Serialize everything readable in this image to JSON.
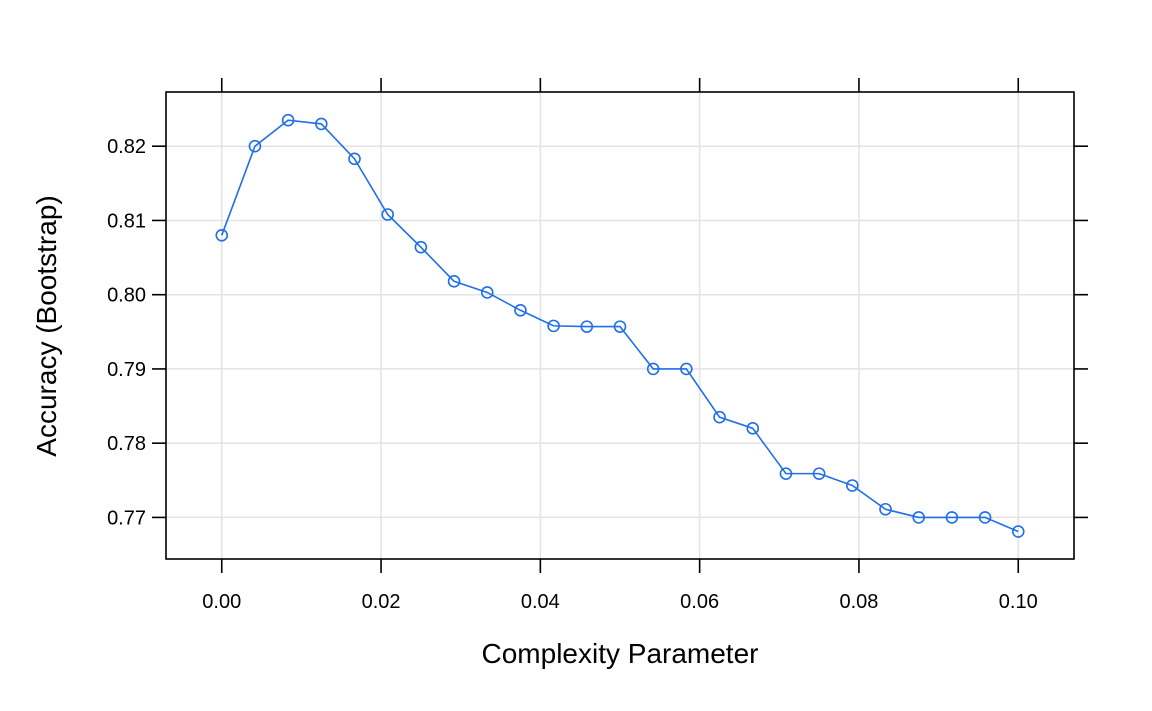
{
  "chart_data": {
    "type": "line",
    "title": "",
    "xlabel": "Complexity Parameter",
    "ylabel": "Accuracy (Bootstrap)",
    "xlim": [
      -0.007,
      0.107
    ],
    "ylim": [
      0.7644,
      0.8273
    ],
    "x_ticks": [
      "0.00",
      "0.02",
      "0.04",
      "0.06",
      "0.08",
      "0.10"
    ],
    "y_ticks": [
      "0.77",
      "0.78",
      "0.79",
      "0.80",
      "0.81",
      "0.82"
    ],
    "grid": true,
    "legend": "none",
    "series": [
      {
        "color": "#1f6fe8",
        "marker": "open-circle",
        "x": [
          0.0,
          0.004167,
          0.008333,
          0.0125,
          0.016667,
          0.020833,
          0.025,
          0.029167,
          0.033333,
          0.0375,
          0.041667,
          0.045833,
          0.05,
          0.054167,
          0.058333,
          0.0625,
          0.066667,
          0.070833,
          0.075,
          0.079167,
          0.083333,
          0.0875,
          0.091667,
          0.095833,
          0.1
        ],
        "y": [
          0.808,
          0.82,
          0.8235,
          0.823,
          0.8183,
          0.8108,
          0.8064,
          0.8018,
          0.8003,
          0.7979,
          0.7958,
          0.7957,
          0.7957,
          0.79,
          0.79,
          0.7835,
          0.782,
          0.7759,
          0.7759,
          0.7743,
          0.7711,
          0.77,
          0.77,
          0.77,
          0.7681
        ]
      }
    ]
  }
}
